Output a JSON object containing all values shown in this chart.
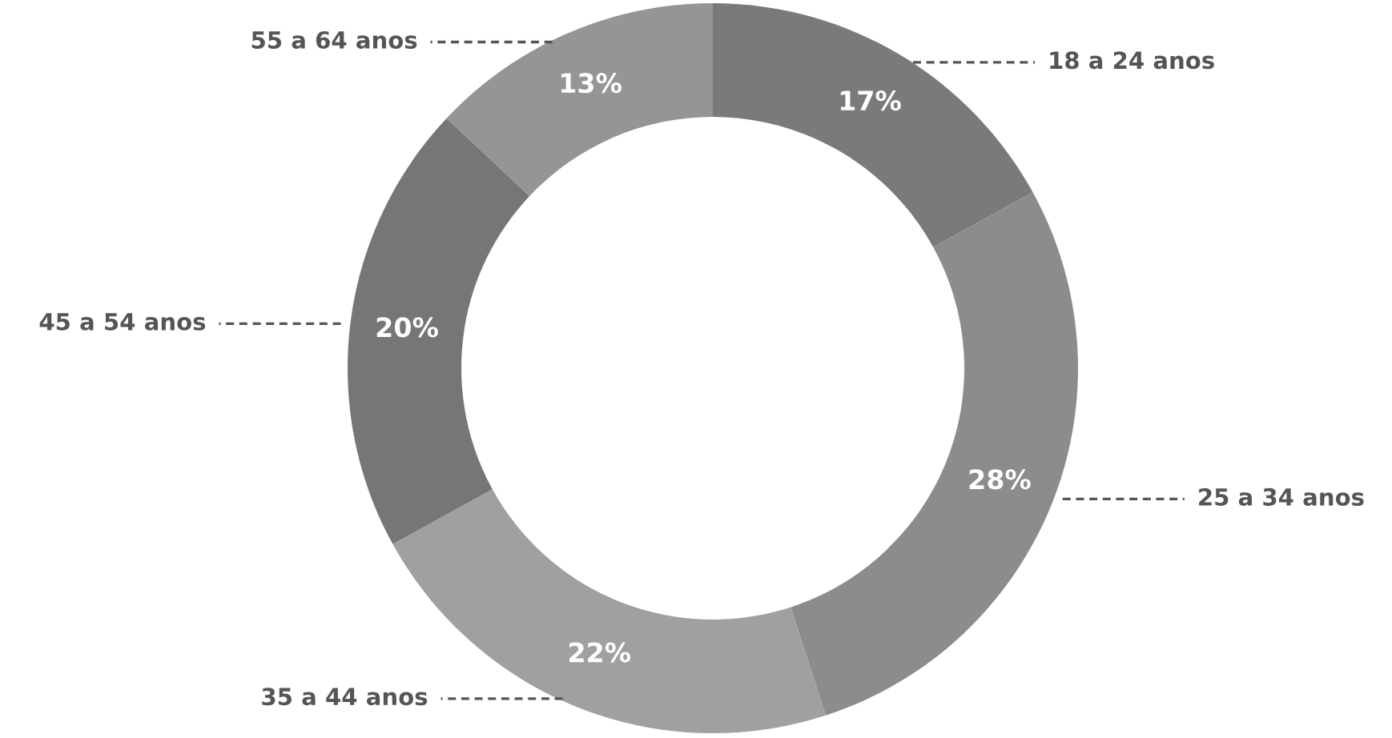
{
  "chart_data": {
    "type": "donut",
    "categories": [
      "18 a 24 anos",
      "25 a 34 anos",
      "35 a 44 anos",
      "45 a 54 anos",
      "55 a 64 anos"
    ],
    "values": [
      17,
      28,
      22,
      20,
      13
    ],
    "value_labels": [
      "17%",
      "28%",
      "22%",
      "20%",
      "13%"
    ],
    "colors": [
      "#7a7a7a",
      "#8c8c8c",
      "#a0a0a0",
      "#767676",
      "#959595"
    ],
    "legend": false
  }
}
